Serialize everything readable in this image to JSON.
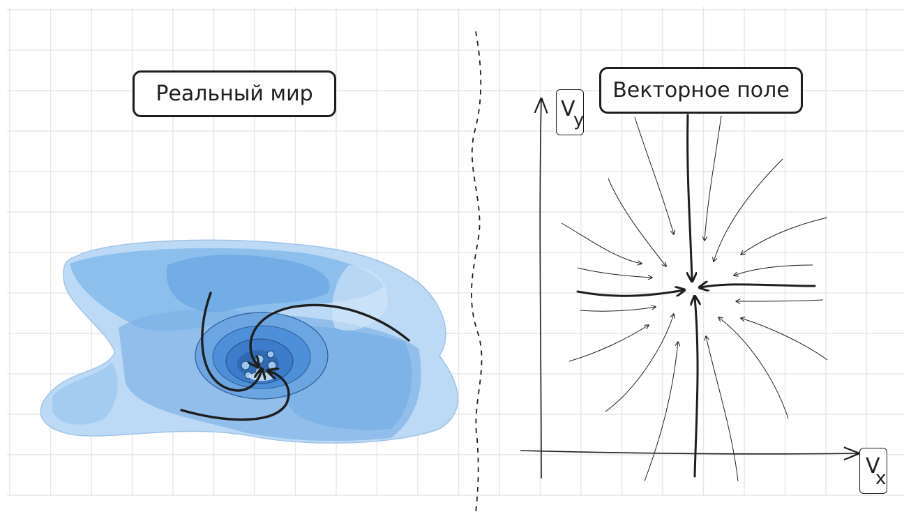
{
  "labels": {
    "real_world": "Реальный мир",
    "vector_field": "Векторное поле"
  },
  "axes": {
    "x": {
      "main": "V",
      "sub": "x"
    },
    "y": {
      "main": "V",
      "sub": "y"
    }
  },
  "colors": {
    "grid": "#e6e6e6",
    "ink": "#1e1e1e",
    "water_light": "#bfdcf6",
    "water_mid": "#8ec0ee",
    "water_deep": "#5a9be0",
    "drain": "#3f78c2"
  }
}
